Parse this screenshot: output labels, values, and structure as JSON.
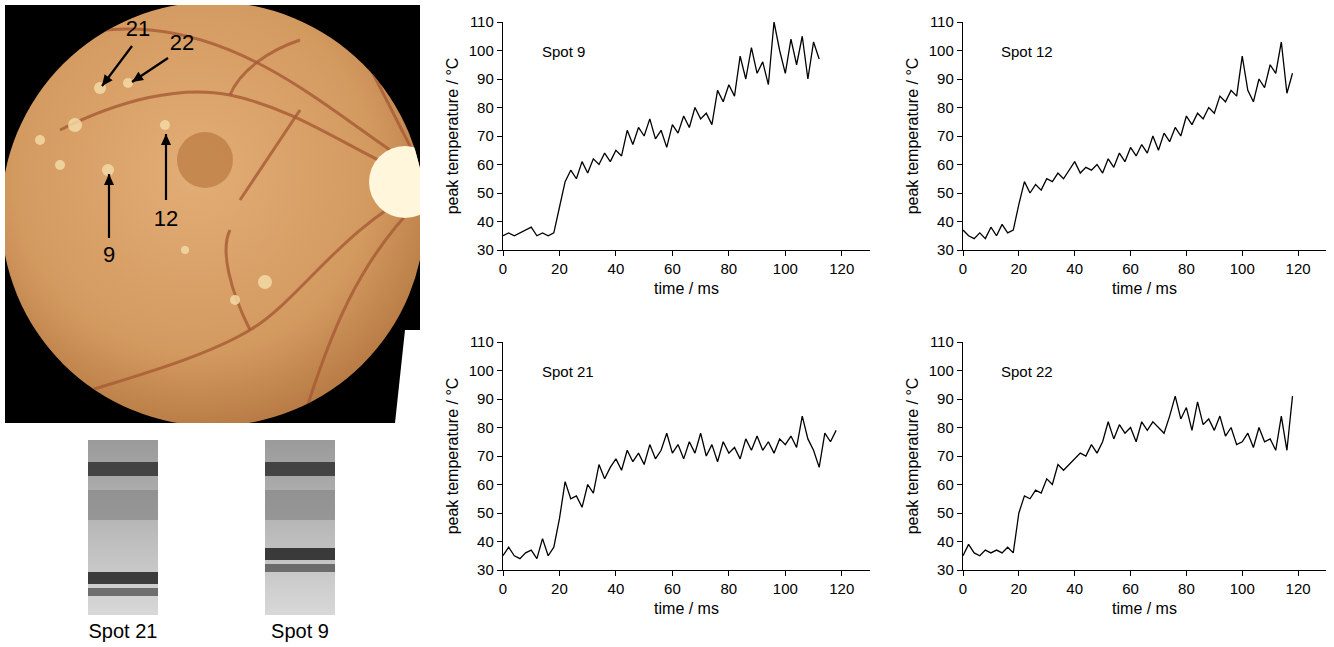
{
  "figure": {
    "fundus_arrow_labels": [
      "21",
      "22",
      "12",
      "9"
    ],
    "oct_labels": [
      "Spot 21",
      "Spot 9"
    ]
  },
  "chart_data": [
    {
      "type": "line",
      "title": "Spot 9",
      "x_label": "time / ms",
      "y_label": "peak temperature / °C",
      "color": "#000000",
      "grid": false,
      "xlim": [
        0,
        130
      ],
      "ylim": [
        30,
        110
      ],
      "xticks": [
        0,
        20,
        40,
        60,
        80,
        100,
        120
      ],
      "yticks": [
        30,
        40,
        50,
        60,
        70,
        80,
        90,
        100,
        110
      ],
      "x": [
        0,
        2,
        4,
        6,
        8,
        10,
        12,
        14,
        16,
        18,
        20,
        22,
        24,
        26,
        28,
        30,
        32,
        34,
        36,
        38,
        40,
        42,
        44,
        46,
        48,
        50,
        52,
        54,
        56,
        58,
        60,
        62,
        64,
        66,
        68,
        70,
        72,
        74,
        76,
        78,
        80,
        82,
        84,
        86,
        88,
        90,
        92,
        94,
        96,
        98,
        100,
        102,
        104,
        106,
        108,
        110,
        112
      ],
      "values": [
        35,
        36,
        35,
        36,
        37,
        38,
        35,
        36,
        35,
        36,
        45,
        54,
        58,
        55,
        61,
        57,
        62,
        60,
        64,
        61,
        65,
        63,
        72,
        67,
        73,
        70,
        76,
        69,
        72,
        66,
        74,
        71,
        77,
        73,
        80,
        76,
        78,
        74,
        86,
        82,
        88,
        84,
        98,
        90,
        101,
        92,
        96,
        88,
        110,
        100,
        92,
        104,
        95,
        105,
        90,
        103,
        97
      ]
    },
    {
      "type": "line",
      "title": "Spot 12",
      "x_label": "time / ms",
      "y_label": "peak temperature / °C",
      "color": "#000000",
      "grid": false,
      "xlim": [
        0,
        130
      ],
      "ylim": [
        30,
        110
      ],
      "xticks": [
        0,
        20,
        40,
        60,
        80,
        100,
        120
      ],
      "yticks": [
        30,
        40,
        50,
        60,
        70,
        80,
        90,
        100,
        110
      ],
      "x": [
        0,
        2,
        4,
        6,
        8,
        10,
        12,
        14,
        16,
        18,
        20,
        22,
        24,
        26,
        28,
        30,
        32,
        34,
        36,
        38,
        40,
        42,
        44,
        46,
        48,
        50,
        52,
        54,
        56,
        58,
        60,
        62,
        64,
        66,
        68,
        70,
        72,
        74,
        76,
        78,
        80,
        82,
        84,
        86,
        88,
        90,
        92,
        94,
        96,
        98,
        100,
        102,
        104,
        106,
        108,
        110,
        112,
        114,
        116,
        118
      ],
      "values": [
        37,
        35,
        34,
        36,
        34,
        38,
        35,
        39,
        36,
        37,
        46,
        54,
        50,
        53,
        51,
        55,
        54,
        57,
        55,
        58,
        61,
        57,
        59,
        58,
        60,
        57,
        62,
        59,
        64,
        61,
        66,
        63,
        67,
        64,
        70,
        65,
        71,
        68,
        73,
        70,
        77,
        74,
        78,
        76,
        80,
        78,
        84,
        82,
        86,
        84,
        98,
        86,
        82,
        90,
        87,
        95,
        92,
        103,
        85,
        92
      ]
    },
    {
      "type": "line",
      "title": "Spot 21",
      "x_label": "time / ms",
      "y_label": "peak temperature / °C",
      "color": "#000000",
      "grid": false,
      "xlim": [
        0,
        130
      ],
      "ylim": [
        30,
        110
      ],
      "xticks": [
        0,
        20,
        40,
        60,
        80,
        100,
        120
      ],
      "yticks": [
        30,
        40,
        50,
        60,
        70,
        80,
        90,
        100,
        110
      ],
      "x": [
        0,
        2,
        4,
        6,
        8,
        10,
        12,
        14,
        16,
        18,
        20,
        22,
        24,
        26,
        28,
        30,
        32,
        34,
        36,
        38,
        40,
        42,
        44,
        46,
        48,
        50,
        52,
        54,
        56,
        58,
        60,
        62,
        64,
        66,
        68,
        70,
        72,
        74,
        76,
        78,
        80,
        82,
        84,
        86,
        88,
        90,
        92,
        94,
        96,
        98,
        100,
        102,
        104,
        106,
        108,
        110,
        112,
        114,
        116,
        118
      ],
      "values": [
        35,
        38,
        35,
        34,
        36,
        37,
        34,
        41,
        35,
        38,
        48,
        61,
        55,
        56,
        52,
        60,
        57,
        67,
        62,
        66,
        69,
        65,
        72,
        68,
        71,
        67,
        74,
        69,
        72,
        78,
        71,
        74,
        69,
        75,
        71,
        78,
        70,
        74,
        68,
        75,
        71,
        73,
        69,
        76,
        72,
        77,
        72,
        75,
        71,
        76,
        74,
        77,
        73,
        84,
        76,
        72,
        66,
        78,
        75,
        79
      ]
    },
    {
      "type": "line",
      "title": "Spot 22",
      "x_label": "time / ms",
      "y_label": "peak temperature / °C",
      "color": "#000000",
      "grid": false,
      "xlim": [
        0,
        130
      ],
      "ylim": [
        30,
        110
      ],
      "xticks": [
        0,
        20,
        40,
        60,
        80,
        100,
        120
      ],
      "yticks": [
        30,
        40,
        50,
        60,
        70,
        80,
        90,
        100,
        110
      ],
      "x": [
        0,
        2,
        4,
        6,
        8,
        10,
        12,
        14,
        16,
        18,
        20,
        22,
        24,
        26,
        28,
        30,
        32,
        34,
        36,
        38,
        40,
        42,
        44,
        46,
        48,
        50,
        52,
        54,
        56,
        58,
        60,
        62,
        64,
        66,
        68,
        70,
        72,
        74,
        76,
        78,
        80,
        82,
        84,
        86,
        88,
        90,
        92,
        94,
        96,
        98,
        100,
        102,
        104,
        106,
        108,
        110,
        112,
        114,
        116,
        118
      ],
      "values": [
        35,
        39,
        36,
        35,
        37,
        36,
        37,
        36,
        38,
        36,
        50,
        56,
        55,
        58,
        57,
        62,
        60,
        67,
        65,
        67,
        69,
        71,
        70,
        74,
        71,
        75,
        82,
        76,
        81,
        78,
        80,
        75,
        82,
        79,
        82,
        80,
        78,
        84,
        91,
        83,
        87,
        79,
        89,
        81,
        83,
        79,
        84,
        77,
        80,
        74,
        75,
        78,
        73,
        80,
        75,
        76,
        72,
        84,
        72,
        91
      ]
    }
  ]
}
